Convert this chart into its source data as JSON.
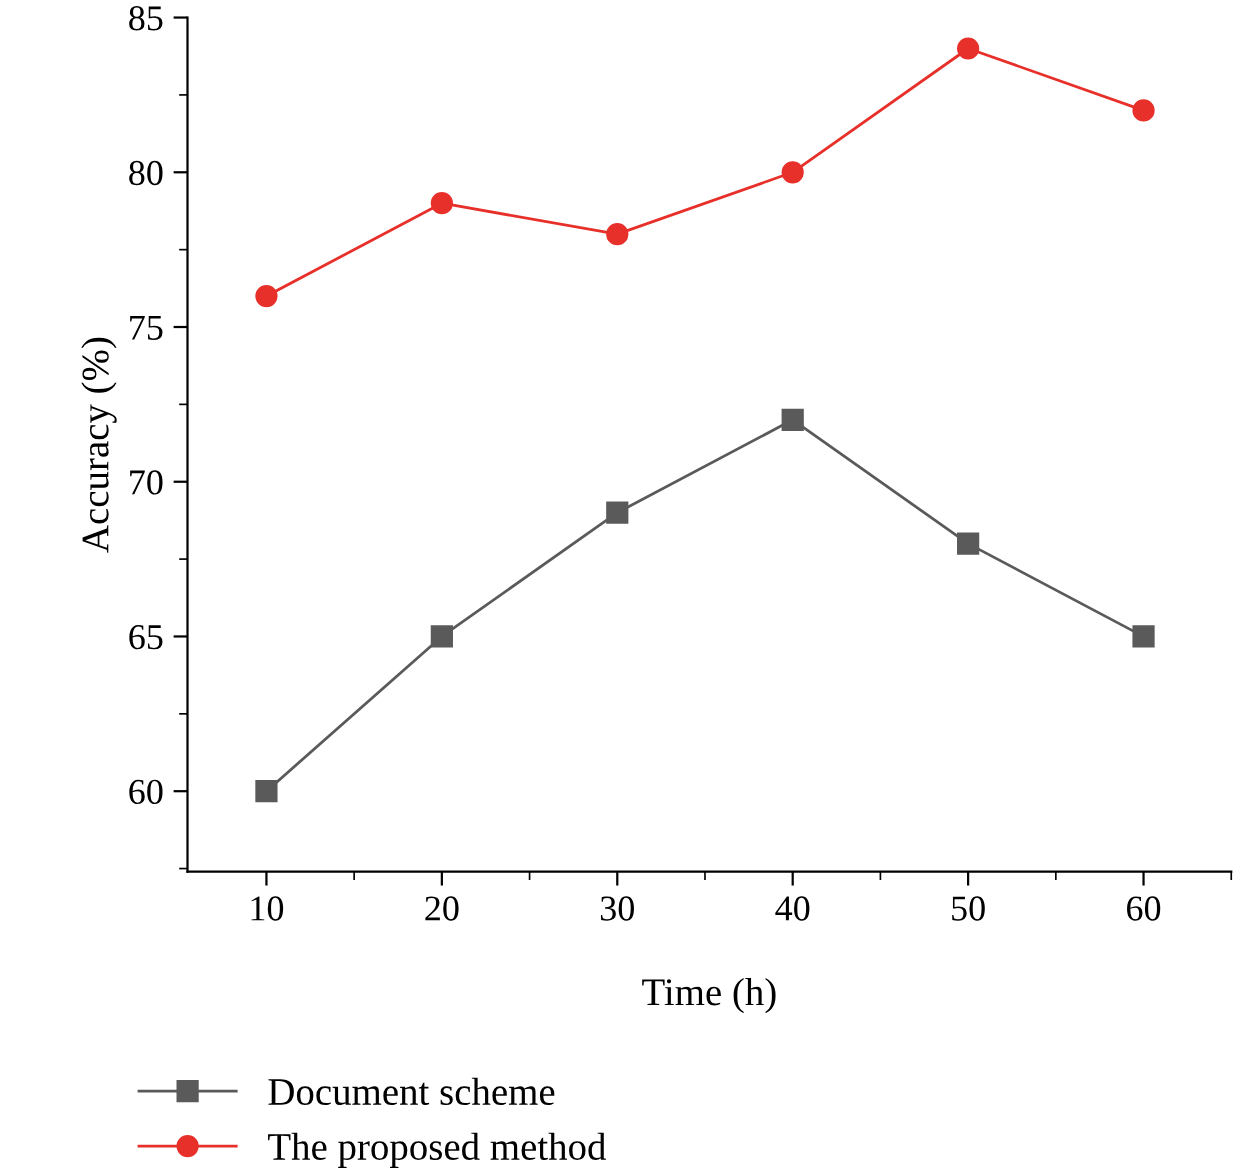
{
  "chart_data": {
    "type": "line",
    "xlabel": "Time (h)",
    "ylabel": "Accuracy (%)",
    "x": [
      10,
      20,
      30,
      40,
      50,
      60
    ],
    "series": [
      {
        "name": "Document scheme",
        "color": "#5a5a5a",
        "marker": "square",
        "values": [
          60,
          65,
          69,
          72,
          68,
          65
        ]
      },
      {
        "name": "The proposed method",
        "color": "#e8302a",
        "marker": "circle",
        "values": [
          76,
          79,
          78,
          80,
          84,
          82
        ]
      }
    ],
    "xlim": [
      5.5,
      65
    ],
    "xticks": [
      10,
      20,
      30,
      40,
      50,
      60
    ],
    "ylim": [
      57.4,
      85
    ],
    "yticks": [
      60,
      65,
      70,
      75,
      80,
      85
    ],
    "grid": false,
    "legend": "bottom",
    "line_style": "solid"
  }
}
